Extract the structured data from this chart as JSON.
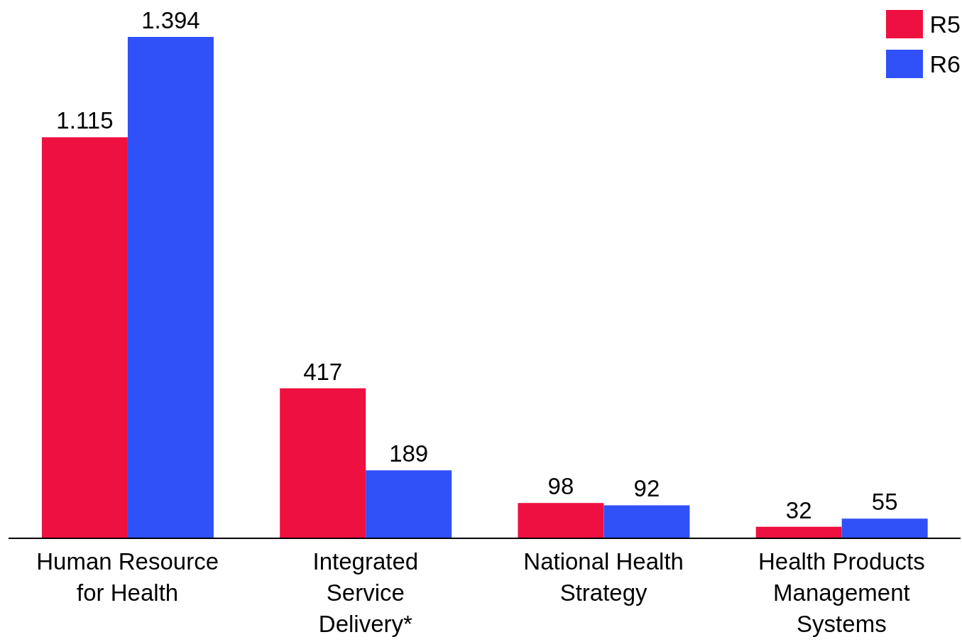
{
  "chart_data": {
    "type": "bar",
    "categories": [
      "Human Resource for Health",
      "Integrated Service Delivery*",
      "National Health Strategy",
      "Health Products Management Systems"
    ],
    "series": [
      {
        "name": "R5",
        "color": "#ee1040",
        "values": [
          1115,
          417,
          98,
          32
        ],
        "value_labels": [
          "1.115",
          "417",
          "98",
          "32"
        ]
      },
      {
        "name": "R6",
        "color": "#3050f8",
        "values": [
          1394,
          189,
          92,
          55
        ],
        "value_labels": [
          "1.394",
          "189",
          "92",
          "55"
        ]
      }
    ],
    "legend": "top right",
    "grid": false
  }
}
